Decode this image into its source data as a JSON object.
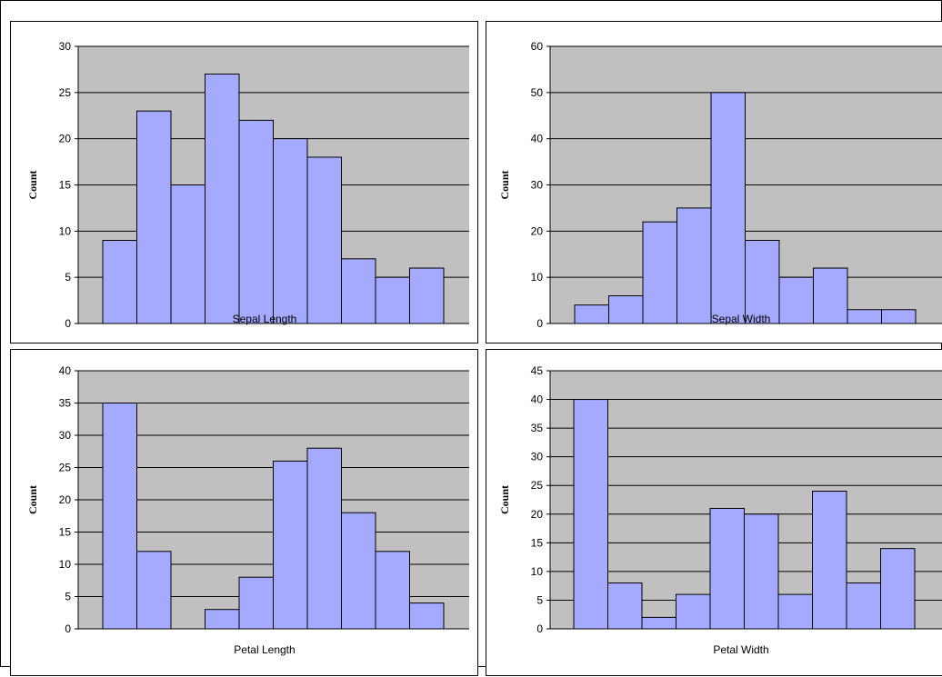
{
  "colors": {
    "plot_background": "#c0c0c0",
    "bar_fill": "#a6aaff",
    "bar_stroke": "#000000",
    "gridline": "#000000"
  },
  "chart_data": [
    {
      "type": "bar",
      "xlabel": "Sepal Length",
      "ylabel": "Count",
      "ylim": [
        0,
        30
      ],
      "yticks": [
        "0",
        "5",
        "10",
        "15",
        "20",
        "25",
        "30"
      ],
      "grid": true,
      "values": [
        9,
        23,
        15,
        27,
        22,
        20,
        18,
        7,
        5,
        6
      ]
    },
    {
      "type": "bar",
      "xlabel": "Sepal Width",
      "ylabel": "Count",
      "ylim": [
        0,
        60
      ],
      "yticks": [
        "0",
        "10",
        "20",
        "30",
        "40",
        "50",
        "60"
      ],
      "grid": true,
      "values": [
        4,
        6,
        22,
        25,
        50,
        18,
        10,
        12,
        3,
        3
      ]
    },
    {
      "type": "bar",
      "xlabel": "Petal Length",
      "ylabel": "Count",
      "ylim": [
        0,
        40
      ],
      "yticks": [
        "0",
        "5",
        "10",
        "15",
        "20",
        "25",
        "30",
        "35",
        "40"
      ],
      "grid": true,
      "values": [
        35,
        12,
        0,
        3,
        8,
        26,
        28,
        18,
        12,
        4
      ]
    },
    {
      "type": "bar",
      "xlabel": "Petal Width",
      "ylabel": "Count",
      "ylim": [
        0,
        45
      ],
      "yticks": [
        "0",
        "5",
        "10",
        "15",
        "20",
        "25",
        "30",
        "35",
        "40",
        "45"
      ],
      "grid": true,
      "values": [
        40,
        8,
        2,
        6,
        21,
        20,
        6,
        24,
        8,
        14
      ]
    }
  ]
}
